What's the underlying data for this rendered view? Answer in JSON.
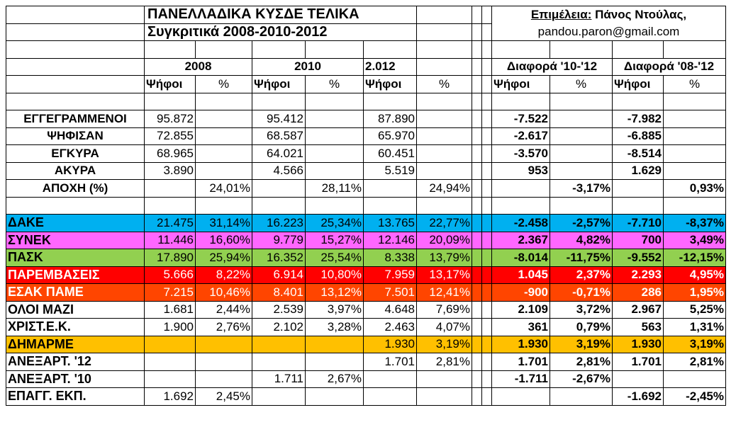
{
  "header": {
    "title": "ΠΑΝΕΛΛΑΔΙΚΑ ΚΥΣΔΕ ΤΕΛΙΚΑ",
    "subtitle": "Συγκριτικά 2008-2010-2012",
    "credit_label": "Επιμέλεια:",
    "credit_name": " Πάνος Ντούλας,",
    "credit_email": "pandou.paron@gmail.com"
  },
  "column_groups": [
    "2008",
    "2010",
    "2.012",
    "Διαφορά '10-'12",
    "Διαφορά '08-'12"
  ],
  "column_headers": [
    "Ψήφοι",
    "%",
    "Ψήφοι",
    "%",
    "Ψήφοι",
    "%",
    "Ψήφοι",
    "%",
    "Ψήφοι",
    "%"
  ],
  "summary_rows": [
    {
      "label": "ΕΓΓΕΓΡΑΜΜΕΝΟΙ",
      "v": [
        "95.872",
        "",
        "95.412",
        "",
        "87.890",
        "",
        "-7.522",
        "",
        "-7.982",
        ""
      ]
    },
    {
      "label": "ΨΗΦΙΣΑΝ",
      "v": [
        "72.855",
        "",
        "68.587",
        "",
        "65.970",
        "",
        "-2.617",
        "",
        "-6.885",
        ""
      ]
    },
    {
      "label": "ΕΓΚΥΡΑ",
      "v": [
        "68.965",
        "",
        "64.021",
        "",
        "60.451",
        "",
        "-3.570",
        "",
        "-8.514",
        ""
      ]
    },
    {
      "label": "ΑΚΥΡΑ",
      "v": [
        "3.890",
        "",
        "4.566",
        "",
        "5.519",
        "",
        "953",
        "",
        "1.629",
        ""
      ]
    },
    {
      "label": "ΑΠΟΧΗ (%)",
      "v": [
        "",
        "24,01%",
        "",
        "28,11%",
        "",
        "24,94%",
        "",
        "-3,17%",
        "",
        "0,93%"
      ]
    }
  ],
  "party_rows": [
    {
      "label": "ΔΑΚΕ",
      "bg": "#00b0f0",
      "fg": "#000000",
      "v": [
        "21.475",
        "31,14%",
        "16.223",
        "25,34%",
        "13.765",
        "22,77%",
        "-2.458",
        "-2,57%",
        "-7.710",
        "-8,37%"
      ]
    },
    {
      "label": "ΣΥΝΕΚ",
      "bg": "#ff66ff",
      "fg": "#000000",
      "v": [
        "11.446",
        "16,60%",
        "9.779",
        "15,27%",
        "12.146",
        "20,09%",
        "2.367",
        "4,82%",
        "700",
        "3,49%"
      ]
    },
    {
      "label": "ΠΑΣΚ",
      "bg": "#92d050",
      "fg": "#000000",
      "v": [
        "17.890",
        "25,94%",
        "16.352",
        "25,54%",
        "8.338",
        "13,79%",
        "-8.014",
        "-11,75%",
        "-9.552",
        "-12,15%"
      ]
    },
    {
      "label": "ΠΑΡΕΜΒΑΣΕΙΣ",
      "bg": "#ff0000",
      "fg": "#ffffff",
      "v": [
        "5.666",
        "8,22%",
        "6.914",
        "10,80%",
        "7.959",
        "13,17%",
        "1.045",
        "2,37%",
        "2.293",
        "4,95%"
      ]
    },
    {
      "label": "ΕΣΑΚ ΠΑΜΕ",
      "bg": "#ff4500",
      "fg": "#ffffff",
      "v": [
        "7.215",
        "10,46%",
        "8.401",
        "13,12%",
        "7.501",
        "12,41%",
        "-900",
        "-0,71%",
        "286",
        "1,95%"
      ]
    },
    {
      "label": "ΟΛΟΙ ΜΑΖΙ",
      "bg": "#ffffff",
      "fg": "#000000",
      "v": [
        "1.681",
        "2,44%",
        "2.539",
        "3,97%",
        "4.648",
        "7,69%",
        "2.109",
        "3,72%",
        "2.967",
        "5,25%"
      ]
    },
    {
      "label": "ΧΡΙΣΤ.Ε.Κ.",
      "bg": "#ffffff",
      "fg": "#000000",
      "v": [
        "1.900",
        "2,76%",
        "2.102",
        "3,28%",
        "2.463",
        "4,07%",
        "361",
        "0,79%",
        "563",
        "1,31%"
      ]
    },
    {
      "label": "ΔΗΜΑΡΜΕ",
      "bg": "#ffc000",
      "fg": "#000000",
      "v": [
        "",
        "",
        "",
        "",
        "1.930",
        "3,19%",
        "1.930",
        "3,19%",
        "1.930",
        "3,19%"
      ]
    },
    {
      "label": "ΑΝΕΞΑΡΤ. '12",
      "bg": "#ffffff",
      "fg": "#000000",
      "v": [
        "",
        "",
        "",
        "",
        "1.701",
        "2,81%",
        "1.701",
        "2,81%",
        "1.701",
        "2,81%"
      ]
    },
    {
      "label": "ΑΝΕΞΑΡΤ. '10",
      "bg": "#ffffff",
      "fg": "#000000",
      "v": [
        "",
        "",
        "1.711",
        "2,67%",
        "",
        "",
        "-1.711",
        "-2,67%",
        "",
        ""
      ]
    },
    {
      "label": "ΕΠΑΓΓ. ΕΚΠ.",
      "bg": "#ffffff",
      "fg": "#000000",
      "v": [
        "1.692",
        "2,45%",
        "",
        "",
        "",
        "",
        "",
        "",
        "-1.692",
        "-2,45%"
      ]
    }
  ]
}
